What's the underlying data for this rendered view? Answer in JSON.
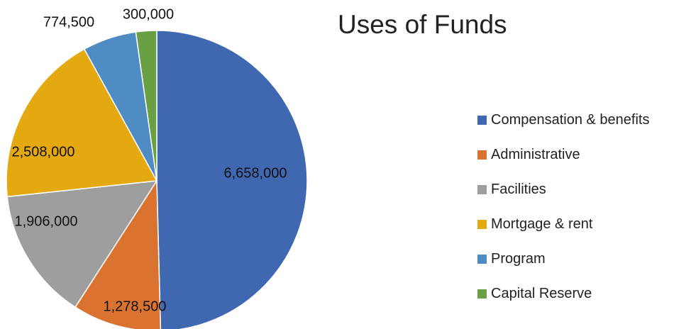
{
  "chart_data": {
    "type": "pie",
    "title": "Uses of Funds",
    "legend": "right",
    "start_angle": "top, clockwise",
    "slices": [
      {
        "label": "Compensation & benefits",
        "value": 6658000,
        "value_label": "6,658,000",
        "color": "#4068B0"
      },
      {
        "label": "Administrative",
        "value": 1278500,
        "value_label": "1,278,500",
        "color": "#D9732F"
      },
      {
        "label": "Facilities",
        "value": 1906000,
        "value_label": "1,906,000",
        "color": "#9E9E9E"
      },
      {
        "label": "Mortgage & rent",
        "value": 2508000,
        "value_label": "2,508,000",
        "color": "#E4A910"
      },
      {
        "label": "Program",
        "value": 774500,
        "value_label": "774,500",
        "color": "#4F8CC4"
      },
      {
        "label": "Capital Reserve",
        "value": 300000,
        "value_label": "300,000",
        "color": "#69A046"
      }
    ]
  }
}
